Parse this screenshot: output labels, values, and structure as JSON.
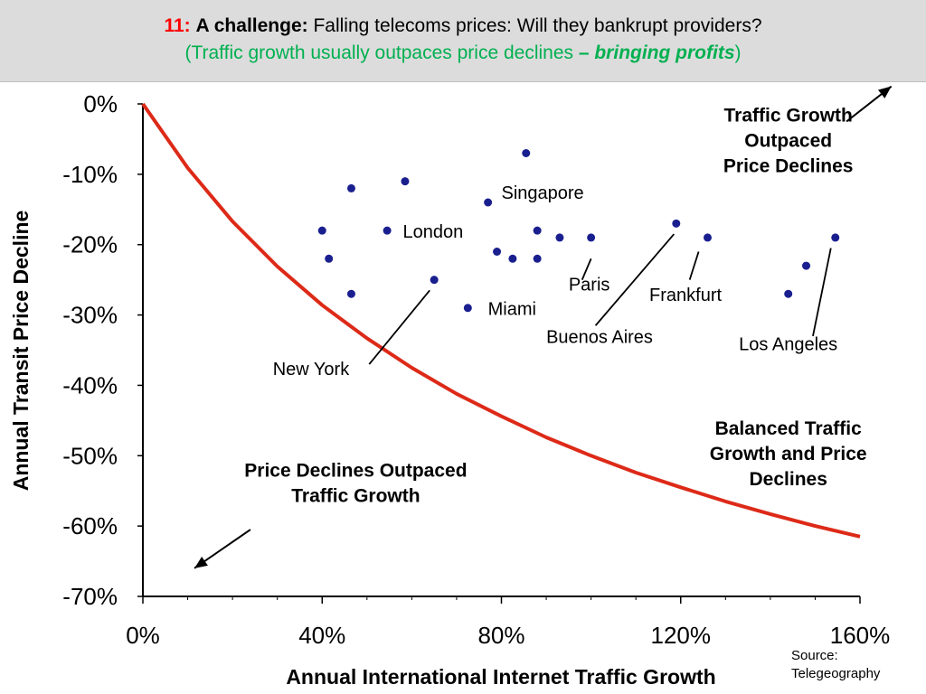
{
  "header": {
    "number": "11:",
    "label": "A challenge:",
    "title": "Falling telecoms prices: Will they bankrupt providers?",
    "subtitle_open": "(Traffic growth usually outpaces price declines ",
    "subtitle_dash": "– ",
    "subtitle_emph": "bringing profits",
    "subtitle_close": ")",
    "colors": {
      "number": "#ff0000",
      "subtitle": "#00b050",
      "background": "#dcdcdc"
    }
  },
  "source": {
    "line1": "Source:",
    "line2": "Telegeography"
  },
  "chart_data": {
    "type": "scatter",
    "xlabel": "Annual International Internet Traffic Growth",
    "ylabel": "Annual Transit Price Decline",
    "xlim": [
      0,
      160
    ],
    "ylim": [
      -70,
      0
    ],
    "x_ticks": [
      "0%",
      "40%",
      "80%",
      "120%",
      "160%"
    ],
    "y_ticks": [
      "0%",
      "-10%",
      "-20%",
      "-30%",
      "-40%",
      "-50%",
      "-60%",
      "-70%"
    ],
    "grid": false,
    "point_color": "#1a1f8f",
    "points": [
      {
        "x": 40,
        "y": -18
      },
      {
        "x": 41.5,
        "y": -22
      },
      {
        "x": 46.5,
        "y": -12
      },
      {
        "x": 46.5,
        "y": -27
      },
      {
        "x": 54.5,
        "y": -18
      },
      {
        "x": 58.5,
        "y": -11
      },
      {
        "x": 65,
        "y": -25
      },
      {
        "x": 72.5,
        "y": -29
      },
      {
        "x": 77,
        "y": -14
      },
      {
        "x": 79,
        "y": -21
      },
      {
        "x": 82.5,
        "y": -22
      },
      {
        "x": 85.5,
        "y": -7
      },
      {
        "x": 88,
        "y": -18
      },
      {
        "x": 88,
        "y": -22
      },
      {
        "x": 93,
        "y": -19
      },
      {
        "x": 100,
        "y": -19
      },
      {
        "x": 119,
        "y": -17
      },
      {
        "x": 126,
        "y": -19
      },
      {
        "x": 144,
        "y": -27
      },
      {
        "x": 148,
        "y": -23
      },
      {
        "x": 154.5,
        "y": -19
      }
    ],
    "curve": {
      "color": "#dd2a18",
      "points": [
        {
          "x": 0,
          "y": 0
        },
        {
          "x": 10,
          "y": -9.1
        },
        {
          "x": 20,
          "y": -16.7
        },
        {
          "x": 30,
          "y": -23.1
        },
        {
          "x": 40,
          "y": -28.6
        },
        {
          "x": 50,
          "y": -33.3
        },
        {
          "x": 60,
          "y": -37.5
        },
        {
          "x": 70,
          "y": -41.2
        },
        {
          "x": 80,
          "y": -44.4
        },
        {
          "x": 90,
          "y": -47.4
        },
        {
          "x": 100,
          "y": -50
        },
        {
          "x": 110,
          "y": -52.4
        },
        {
          "x": 120,
          "y": -54.5
        },
        {
          "x": 130,
          "y": -56.5
        },
        {
          "x": 140,
          "y": -58.3
        },
        {
          "x": 150,
          "y": -60
        },
        {
          "x": 160,
          "y": -61.5
        }
      ]
    },
    "city_labels": [
      {
        "text": "London",
        "x": 58,
        "y": -19,
        "anchor": "start"
      },
      {
        "text": "Singapore",
        "x": 80,
        "y": -13.5,
        "anchor": "start"
      },
      {
        "text": "Paris",
        "x": 95,
        "y": -26.5,
        "anchor": "start"
      },
      {
        "text": "Miami",
        "x": 77,
        "y": -30,
        "anchor": "start"
      },
      {
        "text": "Frankfurt",
        "x": 113,
        "y": -28,
        "anchor": "start"
      },
      {
        "text": "Buenos Aires",
        "x": 90,
        "y": -34,
        "anchor": "start"
      },
      {
        "text": "Los Angeles",
        "x": 133,
        "y": -35,
        "anchor": "start"
      },
      {
        "text": "New York",
        "x": 29,
        "y": -38.5,
        "anchor": "start"
      }
    ],
    "leader_lines": [
      {
        "from": [
          100,
          -22
        ],
        "to": [
          98,
          -25
        ]
      },
      {
        "from": [
          118.5,
          -18.5
        ],
        "to": [
          101,
          -31.5
        ]
      },
      {
        "from": [
          124,
          -21
        ],
        "to": [
          122,
          -25
        ]
      },
      {
        "from": [
          153.5,
          -20.5
        ],
        "to": [
          149.5,
          -33
        ]
      },
      {
        "from": [
          64,
          -26.5
        ],
        "to": [
          50.5,
          -37
        ]
      }
    ],
    "region_labels": [
      {
        "lines": [
          "Traffic Growth",
          "Outpaced",
          "Price Declines"
        ],
        "x": 144,
        "y": -2.5
      },
      {
        "lines": [
          "Balanced Traffic",
          "Growth and Price",
          "Declines"
        ],
        "x": 144,
        "y": -47
      },
      {
        "lines": [
          "Price Declines Outpaced",
          "Traffic Growth"
        ],
        "x": 47.5,
        "y": -53
      }
    ],
    "arrows": [
      {
        "from": [
          157,
          -2.5
        ],
        "to": [
          167,
          2.5
        ]
      },
      {
        "from": [
          24,
          -60.5
        ],
        "to": [
          11.5,
          -66
        ]
      }
    ]
  }
}
